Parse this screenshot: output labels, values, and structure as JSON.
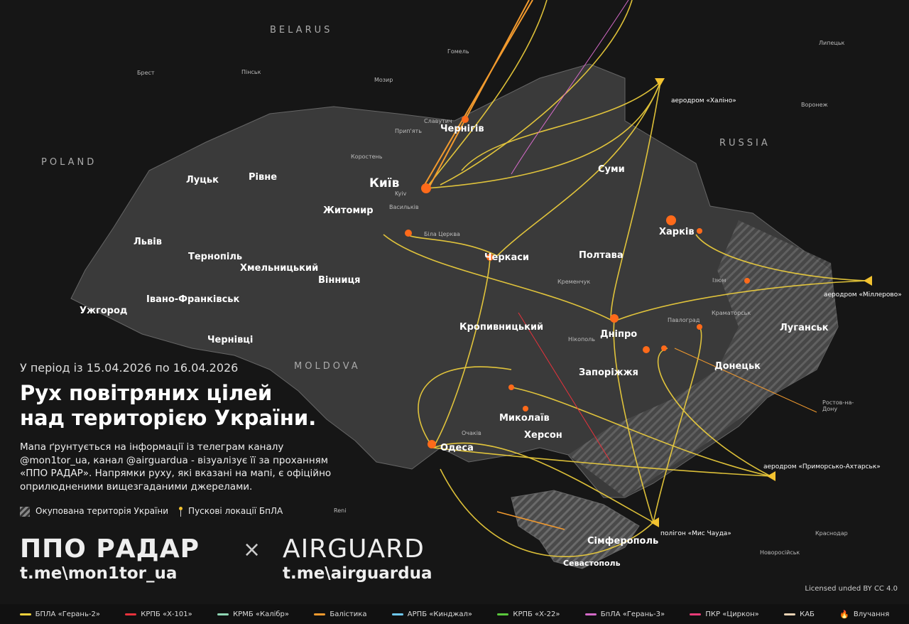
{
  "header": {
    "period": "У період із 15.04.2026 по 16.04.2026",
    "title_line1": "Рух повітряних цілей",
    "title_line2": "над територією України.",
    "description": "Мапа ґрунтується на інформації із телеграм каналу @mon1tor_ua, канал @airguardua - візуалізує її за проханням «ППО РАДАР». Напрямки руху, які вказані на мапі, є офіційно оприлюдненими вищезгаданими джерелами."
  },
  "map_legend": {
    "occupied": "Окупована територія України",
    "launch_sites": "Пускові локації БпЛА"
  },
  "brand": {
    "ppo": "ППО РАДАР",
    "x": "×",
    "airguard": "AIRGUARD",
    "ppo_link": "t.me\\mon1tor_ua",
    "airguard_link": "t.me\\airguardua"
  },
  "license": "Licensed unded BY CC 4.0",
  "countries": [
    "BELARUS",
    "POLAND",
    "RUSSIA",
    "MOLDOVA"
  ],
  "cities": [
    "Київ",
    "Чернігів",
    "Суми",
    "Харків",
    "Полтава",
    "Черкаси",
    "Житомир",
    "Луцьк",
    "Рівне",
    "Львів",
    "Тернопіль",
    "Хмельницький",
    "Вінниця",
    "Івано-Франківськ",
    "Ужгород",
    "Чернівці",
    "Кропивницький",
    "Дніпро",
    "Запоріжжя",
    "Донецьк",
    "Луганськ",
    "Миколаїв",
    "Херсон",
    "Одеса",
    "Сімферополь",
    "Севастополь"
  ],
  "small_places": [
    "Kyiv",
    "Брест",
    "Пінськ",
    "Гомель",
    "Мозир",
    "Липецьк",
    "Воронеж",
    "Ростов-на-Дону",
    "Краснодар",
    "Новоросійськ",
    "Славутич",
    "Прип'ять",
    "Коростень",
    "Васильків",
    "Біла Церква",
    "Кременчук",
    "Нікополь",
    "Павлоград",
    "Краматорськ",
    "Ізюм",
    "Очаків",
    "Reni"
  ],
  "launch_sites": [
    "аеродром «Халіно»",
    "аеродром «Міллерово»",
    "аеродром «Приморсько-Ахтарськ»",
    "полігон «Мис Чауда»"
  ],
  "legend": [
    {
      "label": "БПЛА «Герань-2»",
      "color": "#f2d23c"
    },
    {
      "label": "КРПБ «Х-101»",
      "color": "#e8323c"
    },
    {
      "label": "КРМБ «Калібр»",
      "color": "#8fd6b4"
    },
    {
      "label": "Балістика",
      "color": "#f29a2e"
    },
    {
      "label": "АРПБ «Кинджал»",
      "color": "#6ec8f0"
    },
    {
      "label": "КРПБ «Х-22»",
      "color": "#5ac83c"
    },
    {
      "label": "БпЛА «Герань-3»",
      "color": "#d46ac8"
    },
    {
      "label": "ПКР «Циркон»",
      "color": "#e83c78"
    },
    {
      "label": "КАБ",
      "color": "#e8d2b4"
    },
    {
      "label": "Влучання",
      "icon": "explosion-icon",
      "color": "#ff6a1a"
    }
  ]
}
